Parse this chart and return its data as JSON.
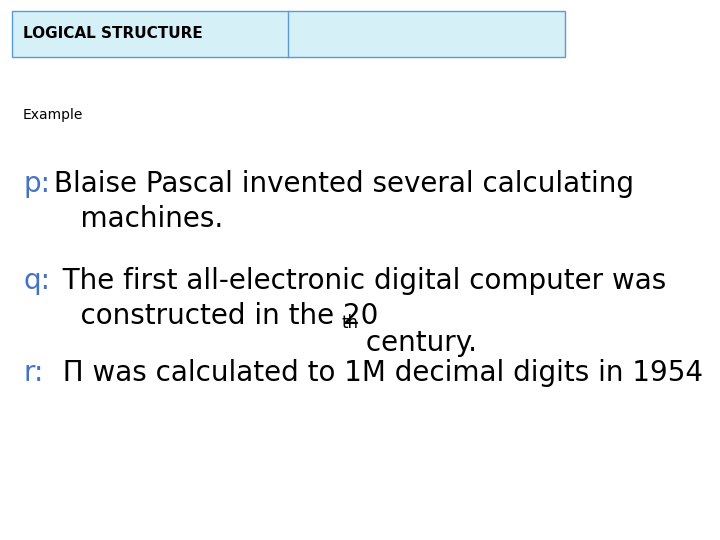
{
  "title": "LOGICAL STRUCTURE",
  "title_bg_color": "#d6f0f8",
  "title_border_color": "#5b9bd5",
  "title_text_color": "#000000",
  "title_fontsize": 11,
  "example_label": "Example",
  "example_fontsize": 10,
  "lines": [
    {
      "label": "p:",
      "label_color": "#4472c4",
      "text": " Blaise Pascal invented several calculating\n    machines.",
      "text_color": "#000000",
      "fontsize": 20
    },
    {
      "label": "q:",
      "label_color": "#4472c4",
      "text": "  The first all-electronic digital computer was\n    constructed in the 20",
      "superscript": "th",
      "text_after_super": " century.",
      "text_color": "#000000",
      "fontsize": 20
    },
    {
      "label": "r:",
      "label_color": "#4472c4",
      "text": "  Π was calculated to 1M decimal digits in 1954",
      "text_color": "#000000",
      "fontsize": 20
    }
  ],
  "bg_color": "#ffffff",
  "fig_width": 7.2,
  "fig_height": 5.4,
  "dpi": 100
}
